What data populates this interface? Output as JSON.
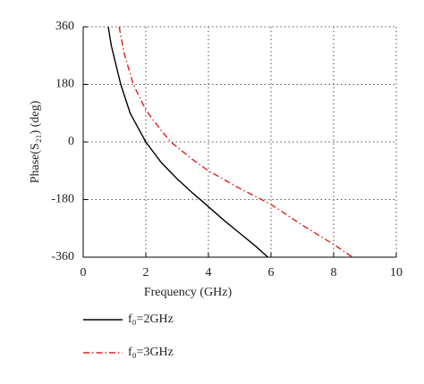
{
  "chart_data": {
    "type": "line",
    "xlabel": "Frequency (GHz)",
    "ylabel": "Phase(S₂₁) (deg)",
    "xlim": [
      0,
      10
    ],
    "xticks": [
      0,
      2,
      4,
      6,
      8,
      10
    ],
    "ylim": [
      -360,
      360
    ],
    "yticks": [
      -360,
      -180,
      0,
      180,
      360
    ],
    "grid": true,
    "series": [
      {
        "name": "f₀=2GHz",
        "color": "#000000",
        "dash": "solid",
        "x": [
          0.8,
          0.9,
          1.05,
          1.2,
          1.5,
          2,
          2.5,
          3,
          3.5,
          3.8,
          4.5,
          5,
          5.5,
          5.9
        ],
        "values": [
          360,
          300,
          240,
          180,
          90,
          0,
          -65,
          -115,
          -160,
          -185,
          -245,
          -285,
          -325,
          -360
        ]
      },
      {
        "name": "f₀=3GHz",
        "color": "#e0201b",
        "dash": "dashdot",
        "x": [
          1.15,
          1.3,
          1.6,
          2,
          2.5,
          2.8,
          3.5,
          4,
          5,
          6,
          7,
          8,
          8.6
        ],
        "values": [
          360,
          280,
          180,
          100,
          35,
          0,
          -55,
          -90,
          -145,
          -195,
          -260,
          -320,
          -360
        ]
      }
    ]
  }
}
